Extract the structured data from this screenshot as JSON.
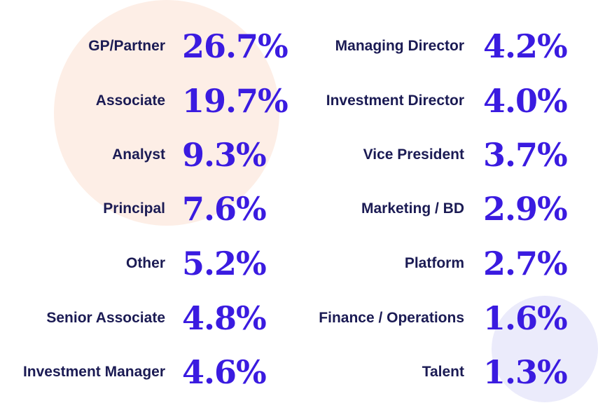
{
  "colors": {
    "label": "#1b1b54",
    "value": "#3a1be0",
    "blob_peach": "#fdeee6",
    "blob_lavender": "#ebebfb"
  },
  "chart_data": {
    "type": "table",
    "unit": "%",
    "columns": [
      {
        "items": [
          {
            "label": "GP/Partner",
            "value": 26.7,
            "display": "26.7%"
          },
          {
            "label": "Associate",
            "value": 19.7,
            "display": "19.7%"
          },
          {
            "label": "Analyst",
            "value": 9.3,
            "display": "9.3%"
          },
          {
            "label": "Principal",
            "value": 7.6,
            "display": "7.6%"
          },
          {
            "label": "Other",
            "value": 5.2,
            "display": "5.2%"
          },
          {
            "label": "Senior Associate",
            "value": 4.8,
            "display": "4.8%"
          },
          {
            "label": "Investment Manager",
            "value": 4.6,
            "display": "4.6%"
          }
        ]
      },
      {
        "items": [
          {
            "label": "Managing Director",
            "value": 4.2,
            "display": "4.2%"
          },
          {
            "label": "Investment Director",
            "value": 4.0,
            "display": "4.0%"
          },
          {
            "label": "Vice President",
            "value": 3.7,
            "display": "3.7%"
          },
          {
            "label": "Marketing / BD",
            "value": 2.9,
            "display": "2.9%"
          },
          {
            "label": "Platform",
            "value": 2.7,
            "display": "2.7%"
          },
          {
            "label": "Finance / Operations",
            "value": 1.6,
            "display": "1.6%"
          },
          {
            "label": "Talent",
            "value": 1.3,
            "display": "1.3%"
          }
        ]
      }
    ]
  }
}
